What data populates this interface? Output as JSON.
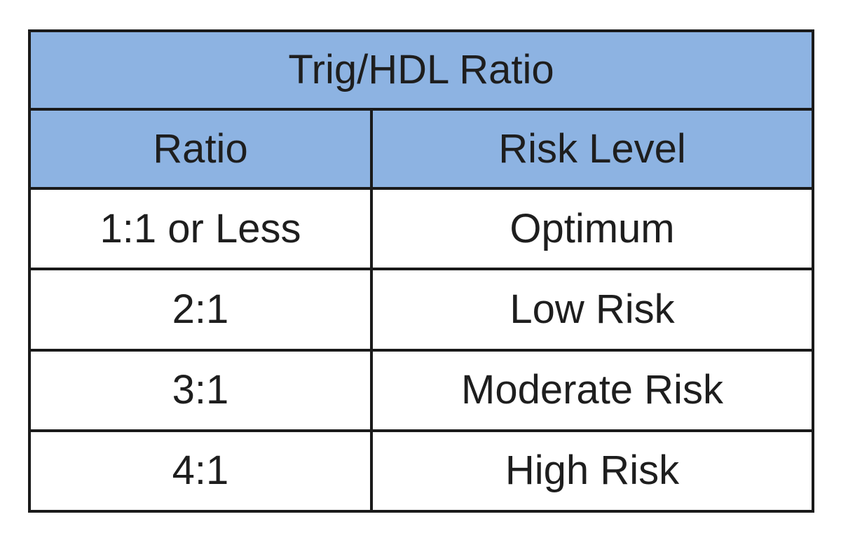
{
  "table": {
    "title": "Trig/HDL Ratio",
    "columns": [
      "Ratio",
      "Risk Level"
    ],
    "rows": [
      [
        "1:1 or Less",
        "Optimum"
      ],
      [
        "2:1",
        "Low Risk"
      ],
      [
        "3:1",
        "Moderate Risk"
      ],
      [
        "4:1",
        "High Risk"
      ]
    ]
  }
}
